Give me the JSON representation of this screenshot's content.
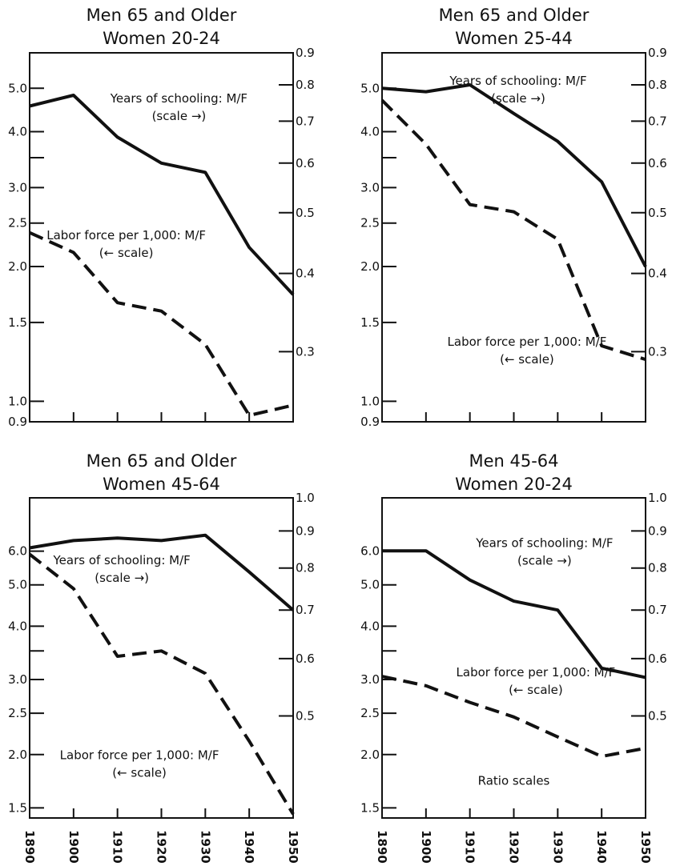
{
  "chart_data": [
    {
      "type": "line",
      "title": [
        "Men 65 and Older",
        "Women 20-24"
      ],
      "x": [
        1890,
        1900,
        1910,
        1920,
        1930,
        1940,
        1950
      ],
      "x_tick_labels": [],
      "left_axis": {
        "scale": "log",
        "ylim": [
          0.9,
          6.0
        ],
        "tick_labels": [
          "5.0",
          "4.0",
          "3.0",
          "2.5",
          "2.0",
          "1.5",
          "1.0",
          "0.9"
        ],
        "ticks": [
          5.0,
          4.0,
          3.0,
          2.5,
          2.0,
          1.5,
          1.0,
          0.9
        ],
        "minor_ticks": [
          3.5
        ]
      },
      "right_axis": {
        "scale": "log",
        "ylim": [
          0.2318,
          0.9
        ],
        "tick_labels": [
          "0.9",
          "0.8",
          "0.7",
          "0.6",
          "0.5",
          "0.4",
          "0.3"
        ],
        "ticks": [
          0.9,
          0.8,
          0.7,
          0.6,
          0.5,
          0.4,
          0.3
        ]
      },
      "series": [
        {
          "name": "Years of schooling: M/F",
          "axis": "right",
          "style": "solid",
          "values": [
            0.74,
            0.77,
            0.66,
            0.6,
            0.58,
            0.44,
            0.37
          ]
        },
        {
          "name": "Labor force per 1,000: M/F",
          "axis": "left",
          "style": "dashed",
          "x": [
            1890,
            1900,
            1910,
            1920,
            1930,
            1940,
            1950
          ],
          "values": [
            2.38,
            2.15,
            1.66,
            1.59,
            1.34,
            0.93,
            0.98
          ]
        }
      ],
      "annotations": [
        {
          "lines": [
            "Years of schooling: M/F",
            "(scale →)"
          ],
          "at": [
            1924,
            0.75
          ]
        },
        {
          "lines": [
            "Labor force per 1,000: M/F",
            "(← scale)"
          ],
          "at": [
            1912,
            2.3
          ]
        }
      ]
    },
    {
      "type": "line",
      "title": [
        "Men 65 and Older",
        "Women 25-44"
      ],
      "x": [
        1890,
        1900,
        1910,
        1920,
        1930,
        1940,
        1950
      ],
      "x_tick_labels": [],
      "left_axis": {
        "scale": "log",
        "ylim": [
          0.9,
          6.0
        ],
        "tick_labels": [
          "5.0",
          "4.0",
          "3.0",
          "2.5",
          "2.0",
          "1.5",
          "1.0",
          "0.9"
        ],
        "ticks": [
          5.0,
          4.0,
          3.0,
          2.5,
          2.0,
          1.5,
          1.0,
          0.9
        ],
        "minor_ticks": [
          3.5
        ]
      },
      "right_axis": {
        "scale": "log",
        "ylim": [
          0.2318,
          0.9
        ],
        "tick_labels": [
          "0.9",
          "0.8",
          "0.7",
          "0.6",
          "0.5",
          "0.4",
          "0.3"
        ],
        "ticks": [
          0.9,
          0.8,
          0.7,
          0.6,
          0.5,
          0.4,
          0.3
        ]
      },
      "series": [
        {
          "name": "Years of schooling: M/F",
          "axis": "right",
          "style": "solid",
          "values": [
            0.79,
            0.78,
            0.8,
            0.72,
            0.65,
            0.56,
            0.41
          ]
        },
        {
          "name": "Labor force per 1,000: M/F",
          "axis": "left",
          "style": "dashed",
          "values": [
            4.7,
            3.75,
            2.75,
            2.65,
            2.3,
            1.33,
            1.24
          ]
        }
      ],
      "annotations": [
        {
          "lines": [
            "Years of schooling: M/F",
            "(scale →)"
          ],
          "at": [
            1921,
            0.8
          ]
        },
        {
          "lines": [
            "Labor force per 1,000: M/F",
            "(← scale)"
          ],
          "at": [
            1923,
            1.33
          ]
        }
      ]
    },
    {
      "type": "line",
      "title": [
        "Men 65 and Older",
        "Women 45-64"
      ],
      "x": [
        1890,
        1900,
        1910,
        1920,
        1930,
        1940,
        1950
      ],
      "x_tick_labels": [
        "1890",
        "1900",
        "1910",
        "1920",
        "1930",
        "1940",
        "1950"
      ],
      "left_axis": {
        "scale": "log",
        "ylim": [
          1.42,
          8.0
        ],
        "tick_labels": [
          "6.0",
          "5.0",
          "4.0",
          "3.0",
          "2.5",
          "2.0",
          "1.5"
        ],
        "ticks": [
          6.0,
          5.0,
          4.0,
          3.0,
          2.5,
          2.0,
          1.5
        ],
        "minor_ticks": [
          3.5
        ]
      },
      "right_axis": {
        "scale": "log",
        "ylim": [
          0.3615,
          1.0
        ],
        "tick_labels": [
          "1.0",
          "0.9",
          "0.8",
          "0.7",
          "0.6",
          "0.5"
        ],
        "ticks": [
          1.0,
          0.9,
          0.8,
          0.7,
          0.6,
          0.5
        ]
      },
      "series": [
        {
          "name": "Years of schooling: M/F",
          "axis": "right",
          "style": "solid",
          "values": [
            0.853,
            0.873,
            0.88,
            0.873,
            0.888,
            0.79,
            0.7
          ]
        },
        {
          "name": "Labor force per 1,000: M/F",
          "axis": "left",
          "style": "dashed",
          "values": [
            5.9,
            4.9,
            3.4,
            3.5,
            3.1,
            2.15,
            1.45
          ]
        }
      ],
      "annotations": [
        {
          "lines": [
            "Years of schooling: M/F",
            "(scale →)"
          ],
          "at": [
            1911,
            0.81
          ]
        },
        {
          "lines": [
            "Labor force per 1,000: M/F",
            "(← scale)"
          ],
          "at": [
            1915,
            1.95
          ]
        }
      ]
    },
    {
      "type": "line",
      "title": [
        "Men 45-64",
        "Women 20-24"
      ],
      "x": [
        1890,
        1900,
        1910,
        1920,
        1930,
        1940,
        1950
      ],
      "x_tick_labels": [
        "1890",
        "1900",
        "1910",
        "1920",
        "1930",
        "1940",
        "1950"
      ],
      "left_axis": {
        "scale": "log",
        "ylim": [
          1.42,
          8.0
        ],
        "tick_labels": [
          "6.0",
          "5.0",
          "4.0",
          "3.0",
          "2.5",
          "2.0",
          "1.5"
        ],
        "ticks": [
          6.0,
          5.0,
          4.0,
          3.0,
          2.5,
          2.0,
          1.5
        ],
        "minor_ticks": [
          3.5
        ]
      },
      "right_axis": {
        "scale": "log",
        "ylim": [
          0.3615,
          1.0
        ],
        "tick_labels": [
          "1.0",
          "0.9",
          "0.8",
          "0.7",
          "0.6",
          "0.5"
        ],
        "ticks": [
          1.0,
          0.9,
          0.8,
          0.7,
          0.6,
          0.5
        ]
      },
      "series": [
        {
          "name": "Years of schooling: M/F",
          "axis": "right",
          "style": "solid",
          "values": [
            0.845,
            0.845,
            0.77,
            0.72,
            0.7,
            0.582,
            0.565
          ]
        },
        {
          "name": "Labor force per 1,000: M/F",
          "axis": "left",
          "style": "dashed",
          "values": [
            3.05,
            2.9,
            2.65,
            2.45,
            2.2,
            1.98,
            2.07
          ]
        }
      ],
      "annotations": [
        {
          "lines": [
            "Years of schooling: M/F",
            "(scale →)"
          ],
          "at": [
            1927,
            0.855
          ]
        },
        {
          "lines": [
            "Labor force per 1,000: M/F",
            "(← scale)"
          ],
          "at": [
            1925,
            3.05
          ]
        },
        {
          "lines": [
            "Ratio scales"
          ],
          "at": [
            1920,
            1.7
          ]
        }
      ]
    }
  ]
}
